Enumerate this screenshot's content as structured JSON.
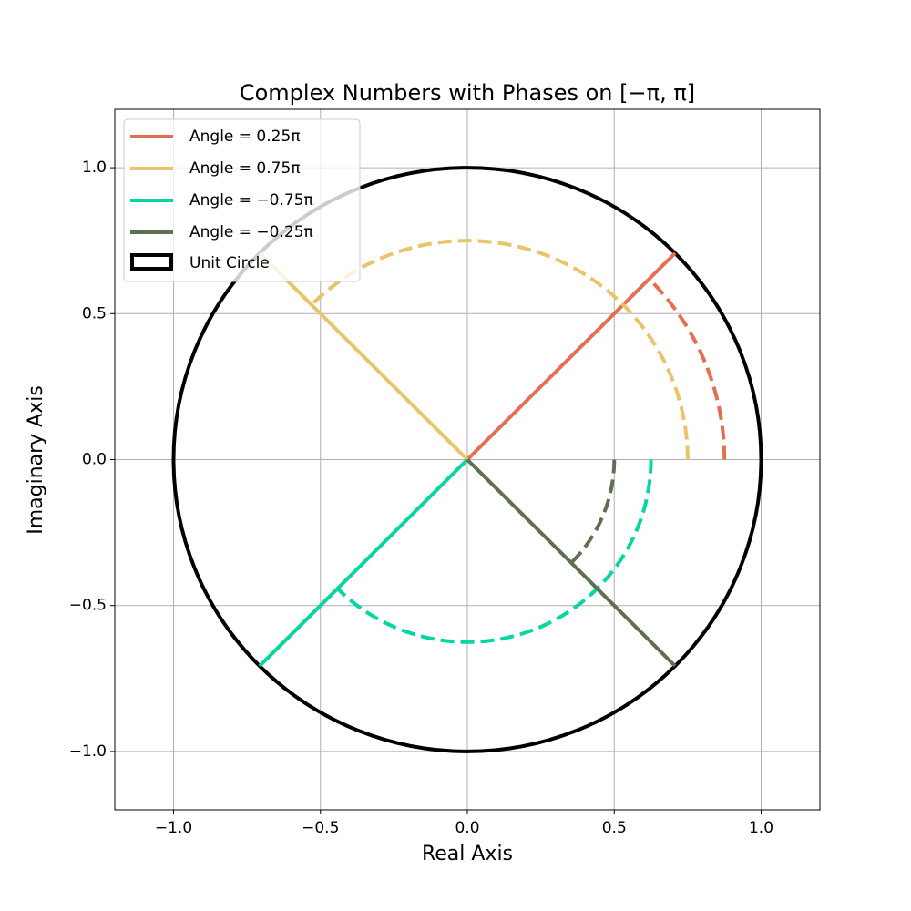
{
  "chart_data": {
    "type": "phase-line",
    "title": "Complex Numbers with Phases on [−π, π]",
    "x_label": "Real Axis",
    "y_label": "Imaginary Axis",
    "xlim": [
      -1.2,
      1.2
    ],
    "ylim": [
      -1.2,
      1.2
    ],
    "xticks": [
      {
        "value": -1,
        "label": "−1.0"
      },
      {
        "value": -0.5,
        "label": "−0.5"
      },
      {
        "value": 0,
        "label": "0.0"
      },
      0.5,
      {
        "value": 1,
        "label": "1.0"
      }
    ],
    "yticks": [
      {
        "value": -1,
        "label": "−1.0"
      },
      {
        "value": -0.5,
        "label": "−0.5"
      },
      {
        "value": 0,
        "label": "0.0"
      },
      0.5,
      {
        "value": 1,
        "label": "1.0"
      }
    ],
    "grid": true,
    "legend": "upper left",
    "series": [
      {
        "name": "Angle = 0.25π",
        "color": "#e76f51",
        "angle": 0.25,
        "arc_radius": 0.875
      },
      {
        "name": "Angle = 0.75π",
        "color": "#e9c46a",
        "angle": 0.75,
        "arc_radius": 0.75
      },
      {
        "name": "Angle = −0.75π",
        "color": "#06d6a0",
        "angle": -0.75,
        "arc_radius": 0.625
      },
      {
        "name": "Angle = −0.25π",
        "color": "#5f6f52",
        "angle": -0.25,
        "arc_radius": 0.5
      }
    ],
    "unit_circle": {
      "name": "Unit Circle",
      "color": "#000000",
      "radius": 1
    }
  }
}
